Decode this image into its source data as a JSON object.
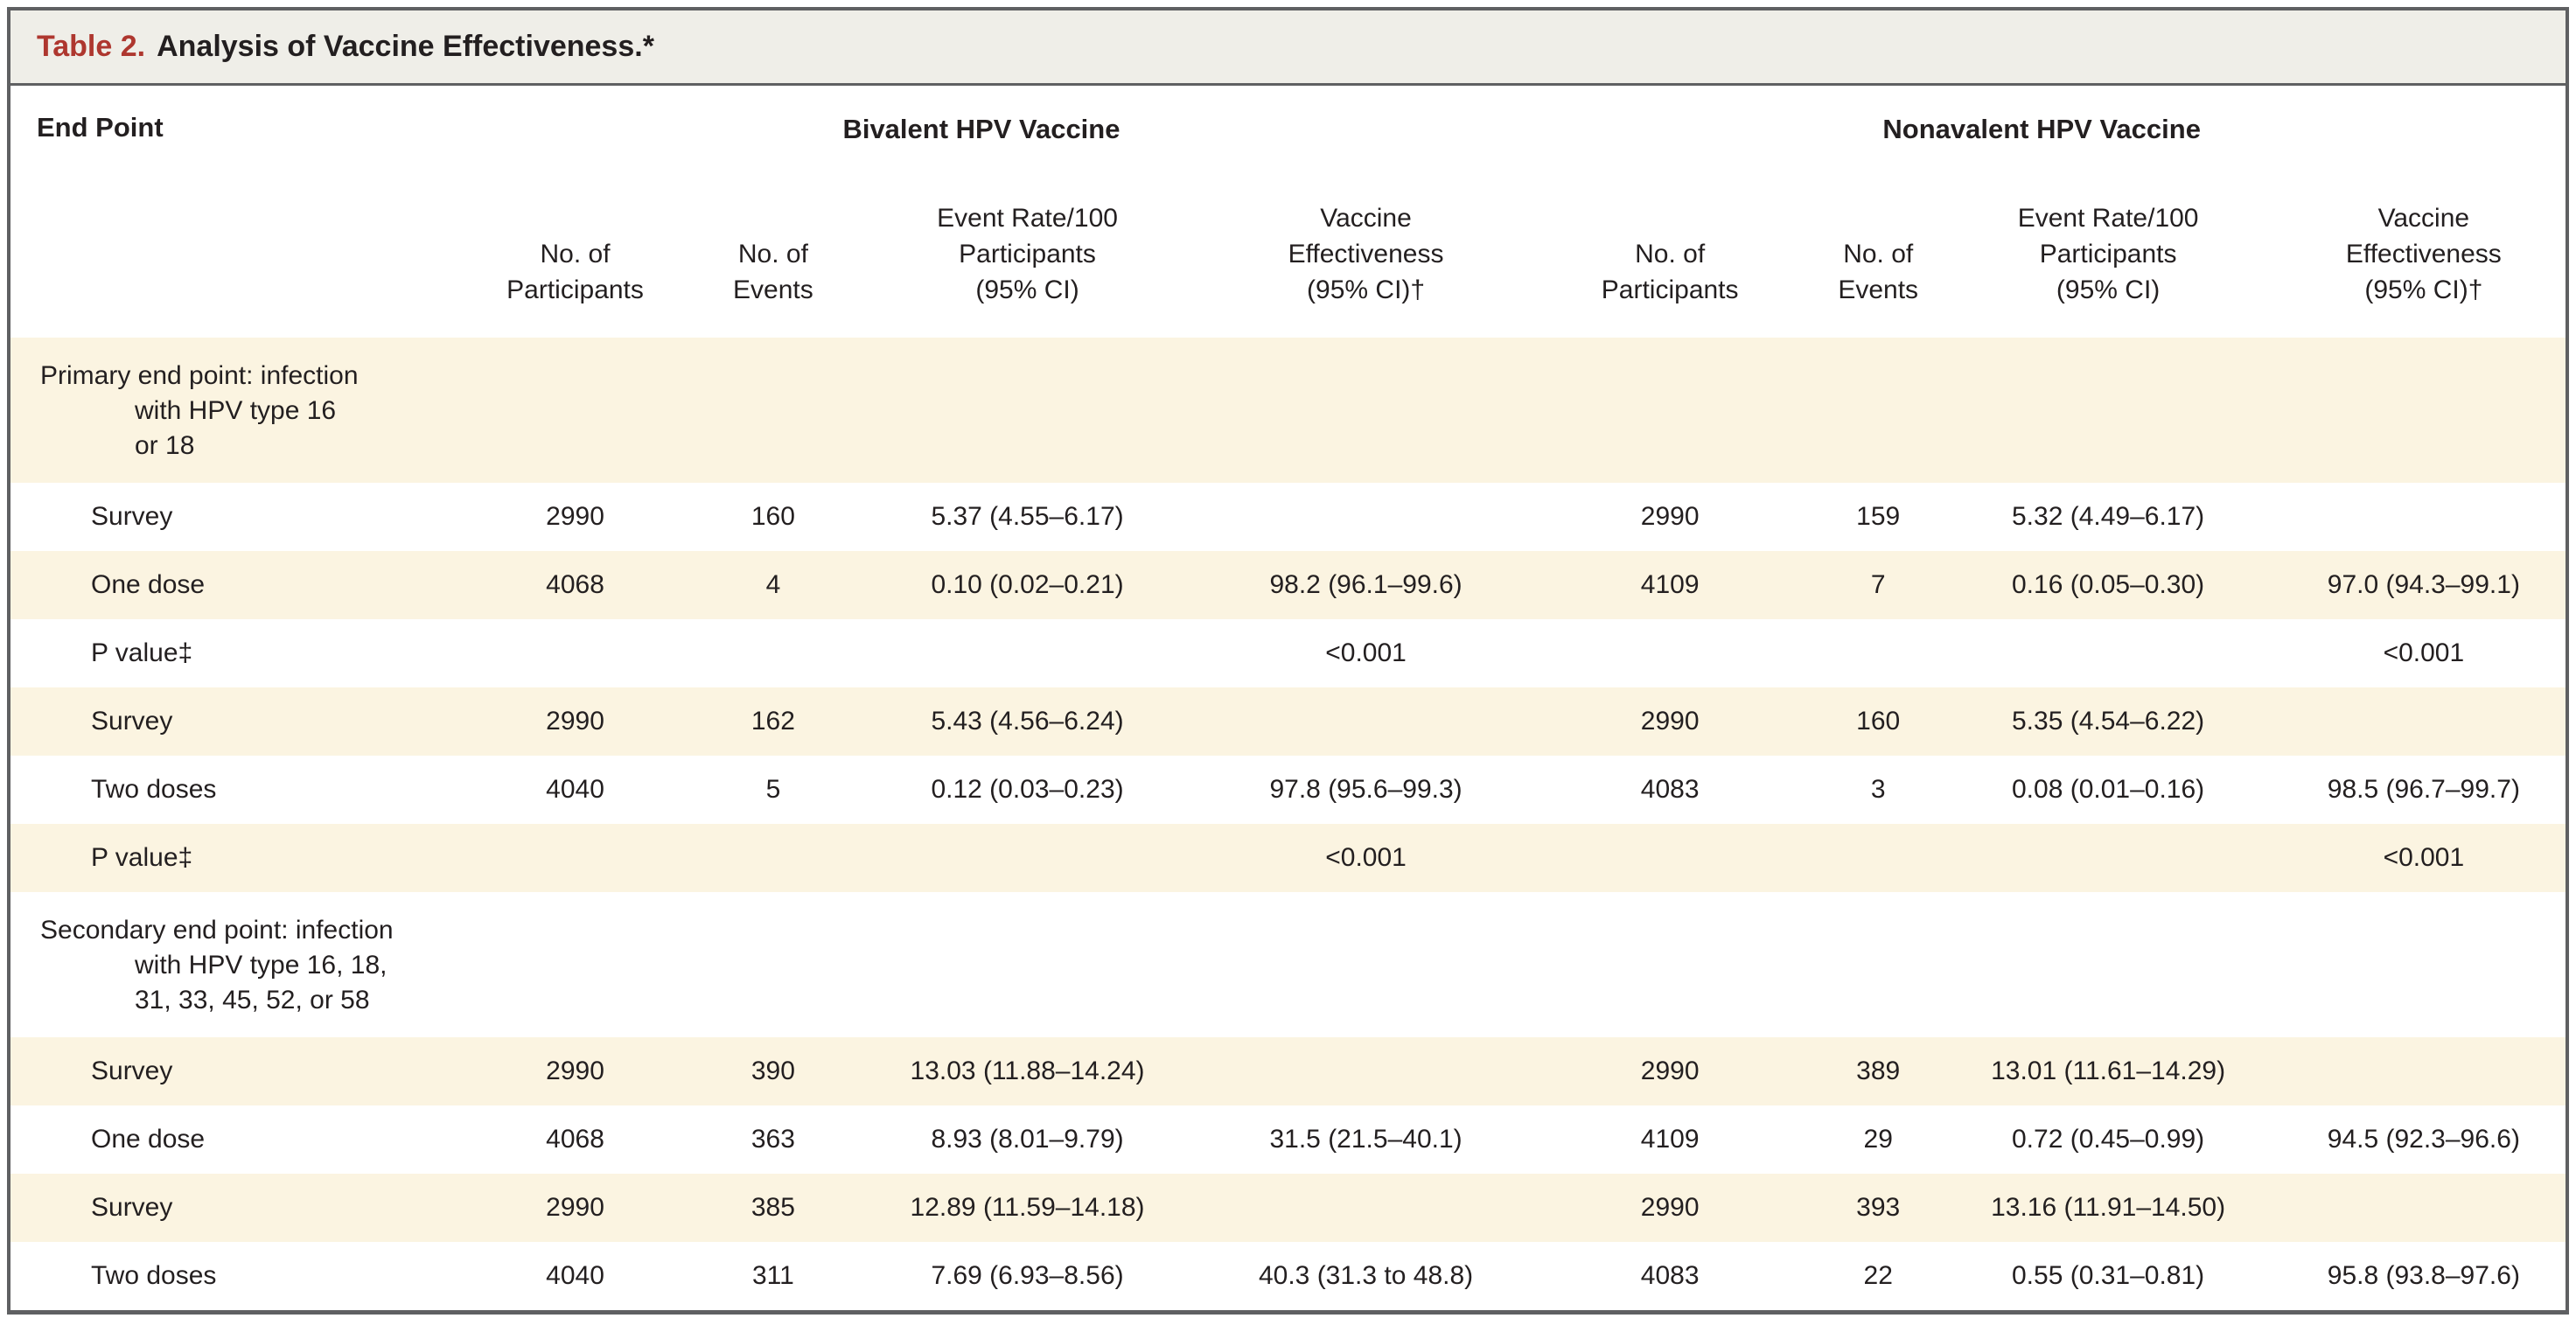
{
  "table": {
    "title_label": "Table 2.",
    "title_text": "Analysis of Vaccine Effectiveness.*"
  },
  "header": {
    "endpoint_label": "End Point",
    "groups": [
      {
        "title": "Bivalent HPV Vaccine"
      },
      {
        "title": "Nonavalent HPV Vaccine"
      }
    ],
    "subcolumns": [
      {
        "title": "No. of\nParticipants"
      },
      {
        "title": "No. of\nEvents"
      },
      {
        "title": "Event Rate/100\nParticipants\n(95% CI)"
      },
      {
        "title": "Vaccine\nEffectiveness\n(95% CI)†"
      },
      {
        "title": "No. of\nParticipants"
      },
      {
        "title": "No. of\nEvents"
      },
      {
        "title": "Event Rate/100\nParticipants\n(95% CI)"
      },
      {
        "title": "Vaccine\nEffectiveness\n(95% CI)†"
      }
    ]
  },
  "rows": [
    {
      "type": "section",
      "label_lines": [
        "Primary end point: infection",
        "with HPV type 16",
        "or 18"
      ]
    },
    {
      "type": "data",
      "label": "Survey",
      "cells": [
        "2990",
        "160",
        "5.37 (4.55–6.17)",
        "",
        "2990",
        "159",
        "5.32 (4.49–6.17)",
        ""
      ]
    },
    {
      "type": "data",
      "label": "One dose",
      "cells": [
        "4068",
        "4",
        "0.10 (0.02–0.21)",
        "98.2 (96.1–99.6)",
        "4109",
        "7",
        "0.16 (0.05–0.30)",
        "97.0 (94.3–99.1)"
      ]
    },
    {
      "type": "data",
      "label": "P value‡",
      "cells": [
        "",
        "",
        "",
        "<0.001",
        "",
        "",
        "",
        "<0.001"
      ]
    },
    {
      "type": "data",
      "label": "Survey",
      "cells": [
        "2990",
        "162",
        "5.43 (4.56–6.24)",
        "",
        "2990",
        "160",
        "5.35 (4.54–6.22)",
        ""
      ]
    },
    {
      "type": "data",
      "label": "Two doses",
      "cells": [
        "4040",
        "5",
        "0.12 (0.03–0.23)",
        "97.8 (95.6–99.3)",
        "4083",
        "3",
        "0.08 (0.01–0.16)",
        "98.5 (96.7–99.7)"
      ]
    },
    {
      "type": "data",
      "label": "P value‡",
      "cells": [
        "",
        "",
        "",
        "<0.001",
        "",
        "",
        "",
        "<0.001"
      ]
    },
    {
      "type": "section",
      "label_lines": [
        "Secondary end point: infection",
        "with HPV type 16, 18,",
        "31, 33, 45, 52, or 58"
      ]
    },
    {
      "type": "data",
      "label": "Survey",
      "cells": [
        "2990",
        "390",
        "13.03 (11.88–14.24)",
        "",
        "2990",
        "389",
        "13.01 (11.61–14.29)",
        ""
      ]
    },
    {
      "type": "data",
      "label": "One dose",
      "cells": [
        "4068",
        "363",
        "8.93 (8.01–9.79)",
        "31.5 (21.5–40.1)",
        "4109",
        "29",
        "0.72 (0.45–0.99)",
        "94.5 (92.3–96.6)"
      ]
    },
    {
      "type": "data",
      "label": "Survey",
      "cells": [
        "2990",
        "385",
        "12.89 (11.59–14.18)",
        "",
        "2990",
        "393",
        "13.16 (11.91–14.50)",
        ""
      ]
    },
    {
      "type": "data",
      "label": "Two doses",
      "cells": [
        "4040",
        "311",
        "7.69 (6.93–8.56)",
        "40.3 (31.3 to 48.8)",
        "4083",
        "22",
        "0.55 (0.31–0.81)",
        "95.8 (93.8–97.6)"
      ]
    }
  ],
  "colors": {
    "accent_red": "#ae372f",
    "stripe_beige": "#fbf4e1",
    "titlebar_bg": "#efeee8",
    "border_gray": "#5f6062",
    "text": "#231f20"
  }
}
